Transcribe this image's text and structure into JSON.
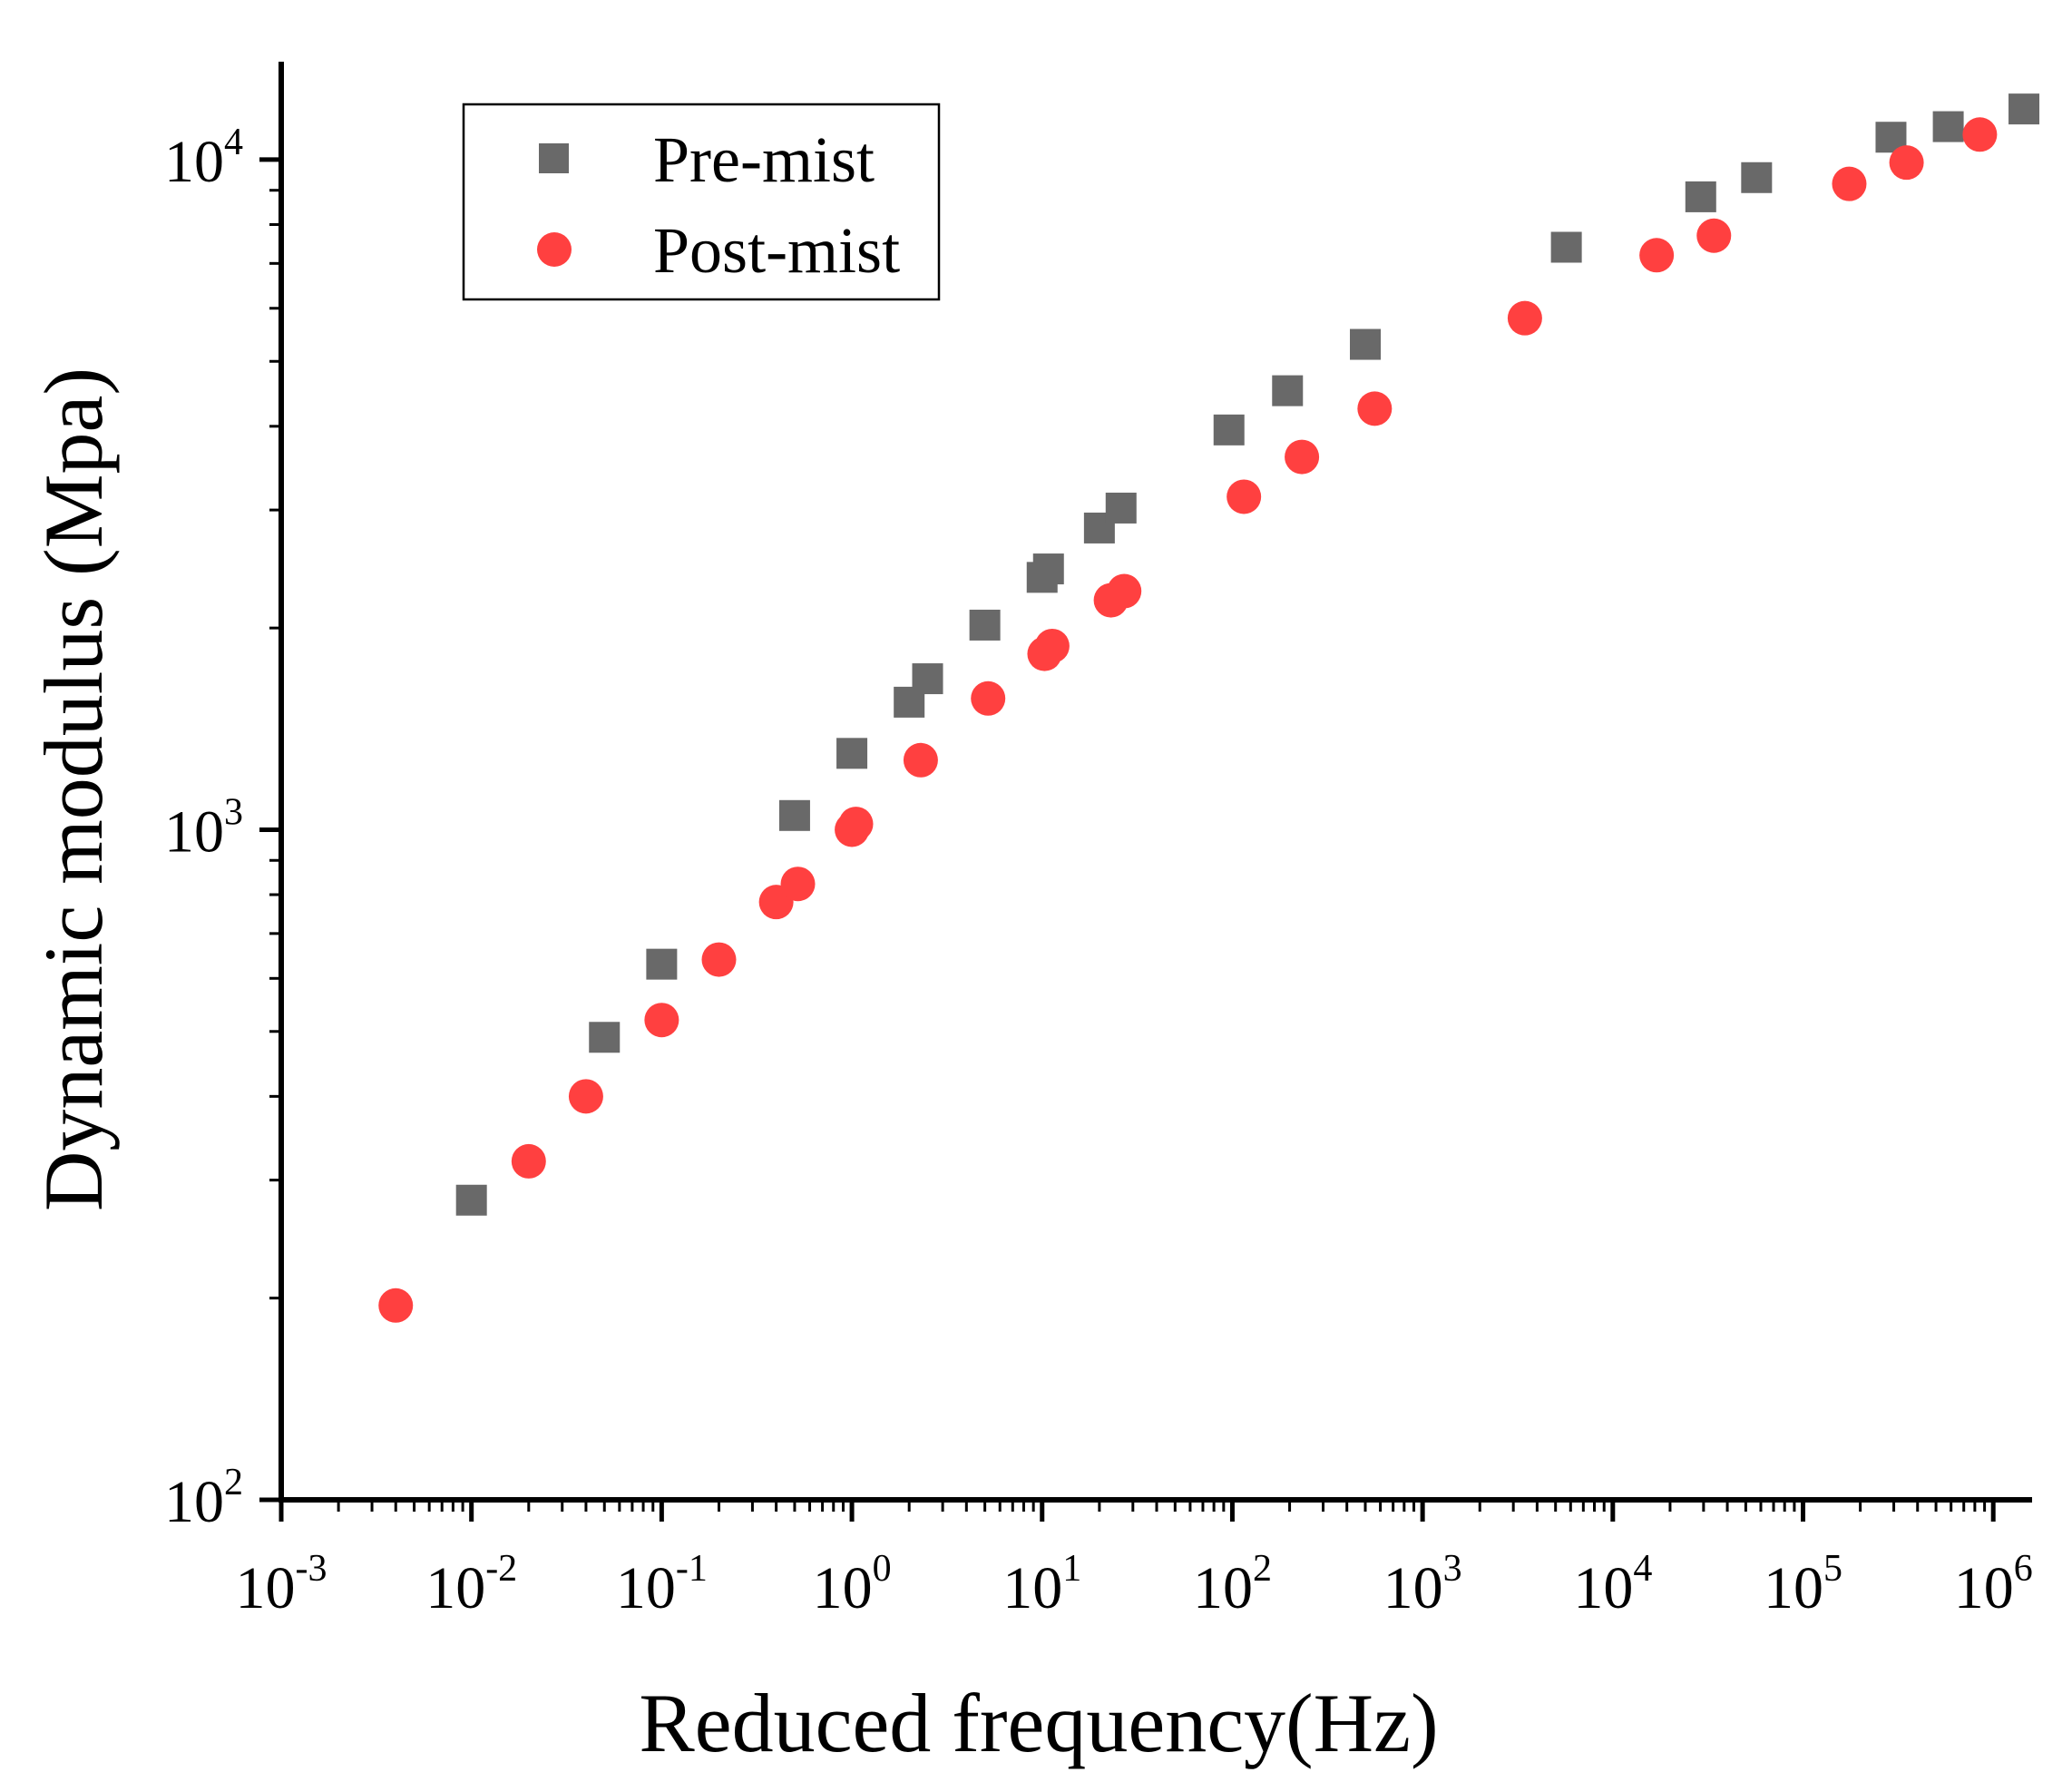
{
  "chart_data": {
    "type": "scatter",
    "title": "",
    "xlabel": "Reduced frequency(Hz)",
    "ylabel": "Dynamic modulus (Mpa)",
    "xscale": "log",
    "yscale": "log",
    "xlim": [
      0.001,
      1600000
    ],
    "ylim": [
      100,
      14000
    ],
    "x_ticks": [
      {
        "base": "10",
        "exp": "-3",
        "value": 0.001
      },
      {
        "base": "10",
        "exp": "-2",
        "value": 0.01
      },
      {
        "base": "10",
        "exp": "-1",
        "value": 0.1
      },
      {
        "base": "10",
        "exp": "0",
        "value": 1
      },
      {
        "base": "10",
        "exp": "1",
        "value": 10
      },
      {
        "base": "10",
        "exp": "2",
        "value": 100
      },
      {
        "base": "10",
        "exp": "3",
        "value": 1000
      },
      {
        "base": "10",
        "exp": "4",
        "value": 10000
      },
      {
        "base": "10",
        "exp": "5",
        "value": 100000
      },
      {
        "base": "10",
        "exp": "6",
        "value": 1000000
      }
    ],
    "y_ticks": [
      {
        "base": "10",
        "exp": "2",
        "value": 100
      },
      {
        "base": "10",
        "exp": "3",
        "value": 1000
      },
      {
        "base": "10",
        "exp": "4",
        "value": 10000
      }
    ],
    "legend": {
      "position": "top-left",
      "entries": [
        "Pre-mist",
        "Post-mist"
      ]
    },
    "series": [
      {
        "name": "Pre-mist",
        "marker": "square",
        "color": "#696969",
        "points": [
          [
            0.01,
            280
          ],
          [
            0.05,
            490
          ],
          [
            0.1,
            630
          ],
          [
            0.5,
            1050
          ],
          [
            1.0,
            1300
          ],
          [
            2.0,
            1550
          ],
          [
            2.5,
            1680
          ],
          [
            5.0,
            2020
          ],
          [
            10.0,
            2380
          ],
          [
            10.8,
            2450
          ],
          [
            20.0,
            2820
          ],
          [
            26.0,
            3020
          ],
          [
            96.0,
            3950
          ],
          [
            195.0,
            4520
          ],
          [
            500.0,
            5300
          ],
          [
            5700.0,
            7400
          ],
          [
            29000.0,
            8800
          ],
          [
            57000.0,
            9400
          ],
          [
            290000.0,
            10800
          ],
          [
            580000.0,
            11200
          ],
          [
            1450000.0,
            11900
          ]
        ]
      },
      {
        "name": "Post-mist",
        "marker": "circle",
        "color": "#ff4040",
        "points": [
          [
            0.004,
            195
          ],
          [
            0.02,
            320
          ],
          [
            0.04,
            400
          ],
          [
            0.1,
            520
          ],
          [
            0.2,
            640
          ],
          [
            0.4,
            780
          ],
          [
            0.52,
            830
          ],
          [
            1.0,
            1000
          ],
          [
            1.05,
            1020
          ],
          [
            2.3,
            1270
          ],
          [
            5.2,
            1570
          ],
          [
            10.3,
            1830
          ],
          [
            11.3,
            1880
          ],
          [
            23.0,
            2200
          ],
          [
            27.0,
            2270
          ],
          [
            115.0,
            3140
          ],
          [
            232.0,
            3600
          ],
          [
            560.0,
            4250
          ],
          [
            3450.0,
            5800
          ],
          [
            17000.0,
            7200
          ],
          [
            34000.0,
            7700
          ],
          [
            175000.0,
            9200
          ],
          [
            350000.0,
            9900
          ],
          [
            850000.0,
            10900
          ]
        ]
      }
    ]
  }
}
